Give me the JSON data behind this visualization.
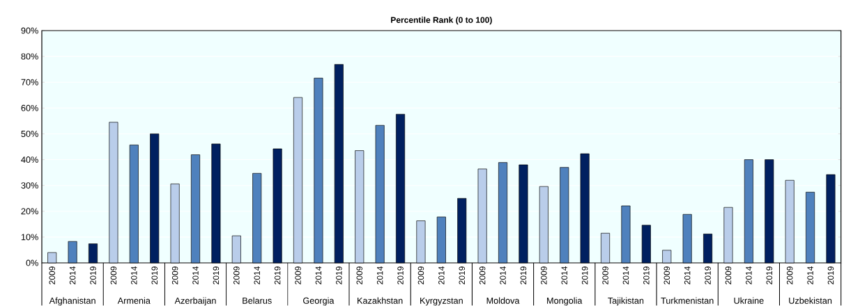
{
  "chart_data": {
    "type": "bar",
    "title": "Percentile Rank (0 to 100)",
    "categories": [
      "Afghanistan",
      "Armenia",
      "Azerbaijan",
      "Belarus",
      "Georgia",
      "Kazakhstan",
      "Kyrgyzstan",
      "Moldova",
      "Mongolia",
      "Tajikistan",
      "Turkmenistan",
      "Ukraine",
      "Uzbekistan"
    ],
    "series": [
      {
        "name": "2009",
        "color": "#b9cdea",
        "values": [
          4.0,
          54.5,
          30.6,
          10.5,
          64.1,
          43.5,
          16.3,
          36.4,
          29.6,
          11.5,
          4.9,
          21.5,
          32.0
        ]
      },
      {
        "name": "2014",
        "color": "#4f81bd",
        "values": [
          8.3,
          45.7,
          41.9,
          34.7,
          71.6,
          53.3,
          17.8,
          38.9,
          37.0,
          22.1,
          18.8,
          40.0,
          27.4
        ]
      },
      {
        "name": "2019",
        "color": "#002060",
        "values": [
          7.4,
          50.0,
          46.1,
          44.2,
          76.9,
          57.6,
          25.0,
          38.0,
          42.3,
          14.6,
          11.2,
          40.0,
          34.2
        ]
      }
    ],
    "ylim": [
      0,
      90
    ],
    "yticks": [
      {
        "value": 0,
        "label": "0%"
      },
      {
        "value": 10,
        "label": "10%"
      },
      {
        "value": 20,
        "label": "20%"
      },
      {
        "value": 30,
        "label": "30%"
      },
      {
        "value": 40,
        "label": "40%"
      },
      {
        "value": 50,
        "label": "50%"
      },
      {
        "value": 60,
        "label": "60%"
      },
      {
        "value": 70,
        "label": "70%"
      },
      {
        "value": 80,
        "label": "80%"
      },
      {
        "value": 90,
        "label": "90%"
      }
    ],
    "grid": "y"
  }
}
